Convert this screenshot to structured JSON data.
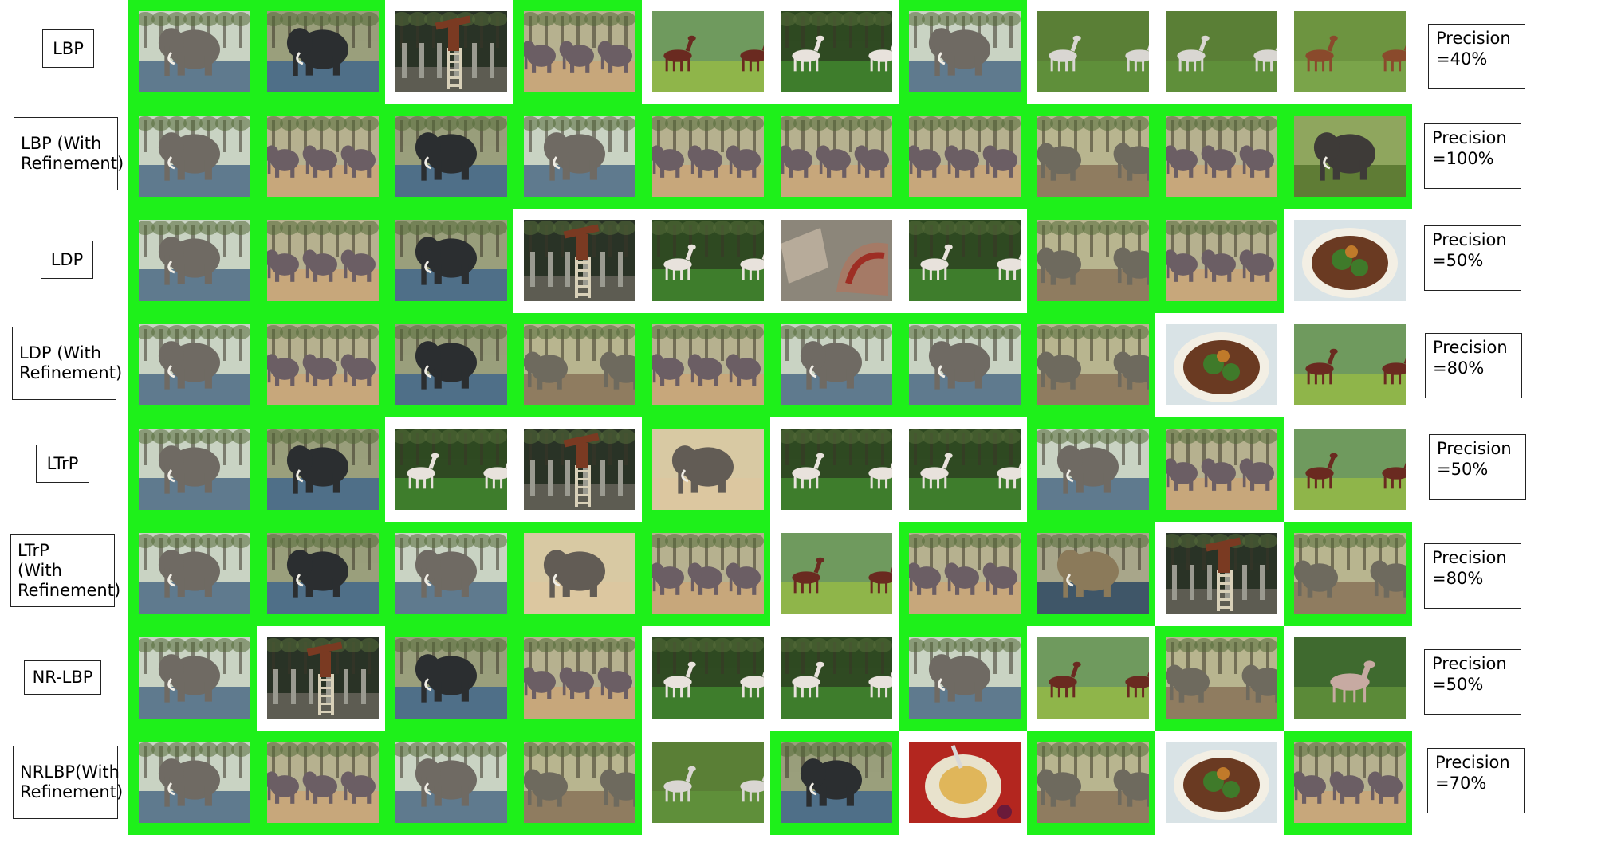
{
  "figure": {
    "relevant_color": "#1ef01a",
    "rows": [
      {
        "method": "LBP",
        "precision": "Precision\n=40%",
        "results": [
          {
            "scene": "elephant-water",
            "relevant": true
          },
          {
            "scene": "elephant-bathing",
            "relevant": true
          },
          {
            "scene": "statue-ladder",
            "relevant": false
          },
          {
            "scene": "elephant-herd",
            "relevant": true
          },
          {
            "scene": "horses-fighting",
            "relevant": false
          },
          {
            "scene": "horses-forest",
            "relevant": false
          },
          {
            "scene": "elephant-water",
            "relevant": true
          },
          {
            "scene": "horses-standing",
            "relevant": false
          },
          {
            "scene": "horses-standing",
            "relevant": false
          },
          {
            "scene": "horses-grazing",
            "relevant": false
          }
        ]
      },
      {
        "method": "LBP (With\nRefinement)",
        "precision": "Precision\n=100%",
        "results": [
          {
            "scene": "elephant-water",
            "relevant": true
          },
          {
            "scene": "elephant-herd",
            "relevant": true
          },
          {
            "scene": "elephant-bathing",
            "relevant": true
          },
          {
            "scene": "elephant-water",
            "relevant": true
          },
          {
            "scene": "elephant-herd",
            "relevant": true
          },
          {
            "scene": "elephant-herd",
            "relevant": true
          },
          {
            "scene": "elephant-herd",
            "relevant": true
          },
          {
            "scene": "elephant-pair",
            "relevant": true
          },
          {
            "scene": "elephant-herd",
            "relevant": true
          },
          {
            "scene": "elephant-grass",
            "relevant": true
          }
        ]
      },
      {
        "method": "LDP",
        "precision": "Precision\n=50%",
        "results": [
          {
            "scene": "elephant-water",
            "relevant": true
          },
          {
            "scene": "elephant-herd",
            "relevant": true
          },
          {
            "scene": "elephant-bathing",
            "relevant": true
          },
          {
            "scene": "statue-ladder",
            "relevant": false
          },
          {
            "scene": "horses-forest",
            "relevant": false
          },
          {
            "scene": "ruins",
            "relevant": false
          },
          {
            "scene": "horses-forest",
            "relevant": false
          },
          {
            "scene": "elephant-pair",
            "relevant": true
          },
          {
            "scene": "elephant-herd",
            "relevant": true
          },
          {
            "scene": "food-plate",
            "relevant": false
          }
        ]
      },
      {
        "method": "LDP (With\nRefinement)",
        "precision": "Precision\n=80%",
        "results": [
          {
            "scene": "elephant-water",
            "relevant": true
          },
          {
            "scene": "elephant-herd",
            "relevant": true
          },
          {
            "scene": "elephant-bathing",
            "relevant": true
          },
          {
            "scene": "elephant-pair",
            "relevant": true
          },
          {
            "scene": "elephant-herd",
            "relevant": true
          },
          {
            "scene": "elephant-water",
            "relevant": true
          },
          {
            "scene": "elephant-water",
            "relevant": true
          },
          {
            "scene": "elephant-pair",
            "relevant": true
          },
          {
            "scene": "food-plate",
            "relevant": false
          },
          {
            "scene": "horses-fighting",
            "relevant": false
          }
        ]
      },
      {
        "method": "LTrP",
        "precision": "Precision\n=50%",
        "results": [
          {
            "scene": "elephant-water",
            "relevant": true
          },
          {
            "scene": "elephant-bathing",
            "relevant": true
          },
          {
            "scene": "horses-forest",
            "relevant": false
          },
          {
            "scene": "statue-ladder",
            "relevant": false
          },
          {
            "scene": "elephant-sand",
            "relevant": true
          },
          {
            "scene": "horses-forest",
            "relevant": false
          },
          {
            "scene": "horses-forest",
            "relevant": false
          },
          {
            "scene": "elephant-water",
            "relevant": true
          },
          {
            "scene": "elephant-herd",
            "relevant": true
          },
          {
            "scene": "horses-fighting",
            "relevant": false
          }
        ]
      },
      {
        "method": "LTrP\n(With\nRefinement)",
        "precision": "Precision\n=80%",
        "results": [
          {
            "scene": "elephant-water",
            "relevant": true
          },
          {
            "scene": "elephant-bathing",
            "relevant": true
          },
          {
            "scene": "elephant-water",
            "relevant": true
          },
          {
            "scene": "elephant-sand",
            "relevant": true
          },
          {
            "scene": "elephant-herd",
            "relevant": true
          },
          {
            "scene": "horses-fighting",
            "relevant": false
          },
          {
            "scene": "elephant-herd",
            "relevant": true
          },
          {
            "scene": "elephant-lying",
            "relevant": true
          },
          {
            "scene": "statue-ladder",
            "relevant": false
          },
          {
            "scene": "elephant-pair",
            "relevant": true
          }
        ]
      },
      {
        "method": "NR-LBP",
        "precision": "Precision\n=50%",
        "results": [
          {
            "scene": "elephant-water",
            "relevant": true
          },
          {
            "scene": "statue-ladder",
            "relevant": false
          },
          {
            "scene": "elephant-bathing",
            "relevant": true
          },
          {
            "scene": "elephant-herd",
            "relevant": true
          },
          {
            "scene": "horses-forest",
            "relevant": false
          },
          {
            "scene": "horses-forest",
            "relevant": false
          },
          {
            "scene": "elephant-water",
            "relevant": true
          },
          {
            "scene": "horses-fighting",
            "relevant": false
          },
          {
            "scene": "elephant-pair",
            "relevant": true
          },
          {
            "scene": "horse-single",
            "relevant": false
          }
        ]
      },
      {
        "method": "NRLBP(With\nRefinement)",
        "precision": "Precision\n=70%",
        "results": [
          {
            "scene": "elephant-water",
            "relevant": true
          },
          {
            "scene": "elephant-herd",
            "relevant": true
          },
          {
            "scene": "elephant-water",
            "relevant": true
          },
          {
            "scene": "elephant-pair",
            "relevant": true
          },
          {
            "scene": "horses-standing",
            "relevant": false
          },
          {
            "scene": "elephant-bathing",
            "relevant": true
          },
          {
            "scene": "food-bowl",
            "relevant": false
          },
          {
            "scene": "elephant-pair",
            "relevant": true
          },
          {
            "scene": "food-plate",
            "relevant": false
          },
          {
            "scene": "elephant-herd",
            "relevant": true
          }
        ]
      }
    ]
  }
}
